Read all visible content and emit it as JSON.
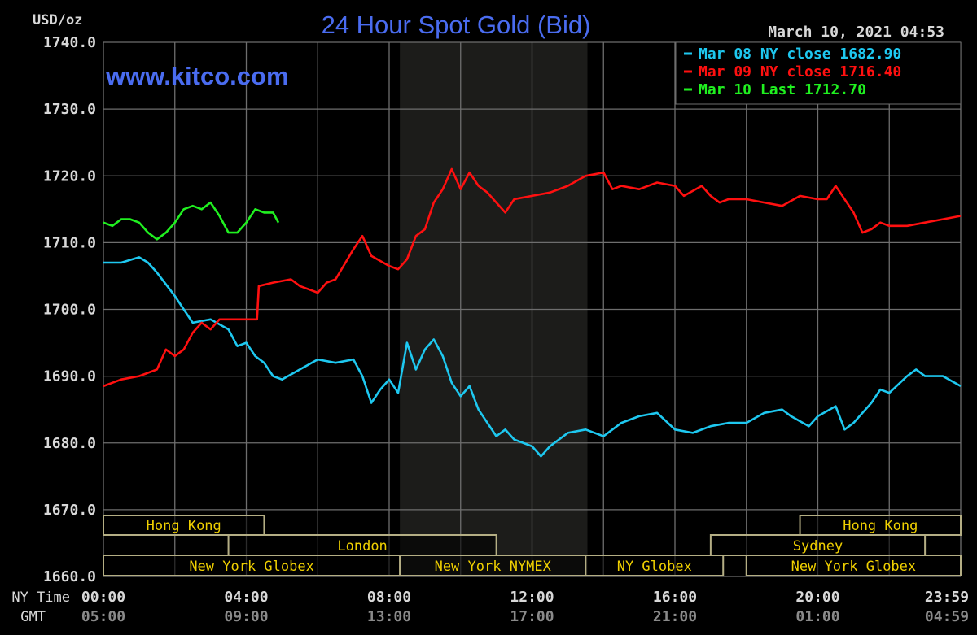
{
  "chart_data": {
    "type": "line",
    "title": "24 Hour Spot Gold (Bid)",
    "watermark": "www.kitco.com",
    "timestamp": "March 10, 2021 04:53",
    "ylabel": "USD/oz",
    "ylim": [
      1660,
      1740
    ],
    "yticks": [
      "1740.0",
      "1730.0",
      "1720.0",
      "1710.0",
      "1700.0",
      "1690.0",
      "1680.0",
      "1670.0",
      "1660.0"
    ],
    "xlim_hours": [
      0,
      24
    ],
    "grid": true,
    "legend_position": "top-right",
    "x_row_labels": {
      "ny": "NY Time",
      "gmt": "GMT"
    },
    "xticks_ny": [
      "00:00",
      "04:00",
      "08:00",
      "12:00",
      "16:00",
      "20:00",
      "23:59"
    ],
    "xticks_gmt": [
      "05:00",
      "09:00",
      "13:00",
      "17:00",
      "21:00",
      "01:00",
      "04:59"
    ],
    "highlight_hours": [
      8.3,
      13.55
    ],
    "series": [
      {
        "name": "Mar 08 NY close 1682.90",
        "color": "#1ec8f0",
        "x": [
          0,
          0.5,
          1,
          1.25,
          1.5,
          2,
          2.25,
          2.5,
          3,
          3.5,
          3.75,
          4,
          4.25,
          4.5,
          4.75,
          5,
          5.5,
          6,
          6.5,
          7,
          7.25,
          7.5,
          7.75,
          8,
          8.25,
          8.5,
          8.75,
          9,
          9.25,
          9.5,
          9.75,
          10,
          10.25,
          10.5,
          11,
          11.25,
          11.5,
          12,
          12.25,
          12.5,
          13,
          13.5,
          14,
          14.5,
          15,
          15.5,
          16,
          16.5,
          17,
          17.5,
          18,
          18.5,
          19,
          19.25,
          19.75,
          20,
          20.5,
          20.75,
          21,
          21.5,
          21.75,
          22,
          22.5,
          22.75,
          23,
          23.5,
          24
        ],
        "y": [
          1707,
          1707,
          1707.8,
          1707,
          1705.5,
          1702,
          1700,
          1698,
          1698.5,
          1697,
          1694.5,
          1695,
          1693,
          1692,
          1690,
          1689.5,
          1691,
          1692.5,
          1692,
          1692.5,
          1690,
          1686,
          1688,
          1689.5,
          1687.5,
          1695,
          1691,
          1694,
          1695.5,
          1693,
          1689,
          1687,
          1688.5,
          1685,
          1681,
          1682,
          1680.5,
          1679.5,
          1678,
          1679.5,
          1681.5,
          1682,
          1681,
          1683,
          1684,
          1684.5,
          1682,
          1681.5,
          1682.5,
          1683,
          1683,
          1684.5,
          1685,
          1684,
          1682.5,
          1684,
          1685.5,
          1682,
          1683,
          1686,
          1688,
          1687.5,
          1690,
          1691,
          1690,
          1690,
          1688.5
        ]
      },
      {
        "name": "Mar 09 NY close 1716.40",
        "color": "#ff1010",
        "x": [
          0,
          0.5,
          1,
          1.5,
          1.75,
          2,
          2.25,
          2.5,
          2.75,
          3,
          3.25,
          3.5,
          4,
          4.3,
          4.35,
          4.75,
          5.25,
          5.5,
          6,
          6.25,
          6.5,
          7,
          7.25,
          7.5,
          8,
          8.25,
          8.5,
          8.75,
          9,
          9.25,
          9.5,
          9.75,
          10,
          10.25,
          10.5,
          10.75,
          11,
          11.25,
          11.5,
          12,
          12.5,
          13,
          13.5,
          14,
          14.25,
          14.5,
          15,
          15.5,
          16,
          16.25,
          16.75,
          17,
          17.25,
          17.5,
          18,
          18.5,
          19,
          19.5,
          20,
          20.25,
          20.5,
          20.75,
          21,
          21.25,
          21.5,
          21.75,
          22,
          22.5,
          23,
          23.5,
          24
        ],
        "y": [
          1688.5,
          1689.5,
          1690,
          1691,
          1694,
          1693,
          1694,
          1696.5,
          1698,
          1697,
          1698.5,
          1698.5,
          1698.5,
          1698.5,
          1703.5,
          1704,
          1704.5,
          1703.5,
          1702.5,
          1704,
          1704.5,
          1709,
          1711,
          1708,
          1706.5,
          1706,
          1707.5,
          1711,
          1712,
          1716,
          1718,
          1721,
          1718,
          1720.5,
          1718.5,
          1717.5,
          1716,
          1714.5,
          1716.5,
          1717,
          1717.5,
          1718.5,
          1720,
          1720.5,
          1718,
          1718.5,
          1718,
          1719,
          1718.5,
          1717,
          1718.5,
          1717,
          1716,
          1716.5,
          1716.5,
          1716,
          1715.5,
          1717,
          1716.5,
          1716.5,
          1718.5,
          1716.5,
          1714.5,
          1711.5,
          1712,
          1713,
          1712.5,
          1712.5,
          1713,
          1713.5,
          1714
        ]
      },
      {
        "name": "Mar 10 Last 1712.70",
        "color": "#20f020",
        "x": [
          0,
          0.25,
          0.5,
          0.75,
          1,
          1.25,
          1.5,
          1.75,
          2,
          2.25,
          2.5,
          2.75,
          3,
          3.25,
          3.5,
          3.75,
          4,
          4.25,
          4.5,
          4.75,
          4.9
        ],
        "y": [
          1713,
          1712.5,
          1713.5,
          1713.5,
          1713,
          1711.5,
          1710.5,
          1711.5,
          1713,
          1715,
          1715.5,
          1715,
          1716,
          1714,
          1711.5,
          1711.5,
          1713,
          1715,
          1714.5,
          1714.5,
          1713
        ]
      }
    ],
    "sessions": [
      {
        "label": "Hong Kong",
        "row": 0,
        "start": 0,
        "end": 4.5
      },
      {
        "label": "London",
        "row": 1,
        "start": 3.5,
        "end": 11
      },
      {
        "label": "New York Globex",
        "row": 2,
        "start": 0,
        "end": 8.3
      },
      {
        "label": "New York NYMEX",
        "row": 2,
        "start": 8.3,
        "end": 13.5
      },
      {
        "label": "NY Globex",
        "row": 2,
        "start": 13.5,
        "end": 17.35
      },
      {
        "label": "Sydney",
        "row": 1,
        "start": 17,
        "end": 23
      },
      {
        "label": "New York Globex",
        "row": 2,
        "start": 18,
        "end": 24
      },
      {
        "label": "Hong Kong",
        "row": 0,
        "start": 19.5,
        "end": 24
      }
    ],
    "colors": {
      "title": "#4a6cf0",
      "grid": "#6e6e6e",
      "axis_text": "#d8d8d8",
      "gmt_text": "#8a8a8a",
      "session_text": "#f0d000",
      "session_border": "#b4ae84",
      "highlight": "#1c1c1a"
    }
  }
}
